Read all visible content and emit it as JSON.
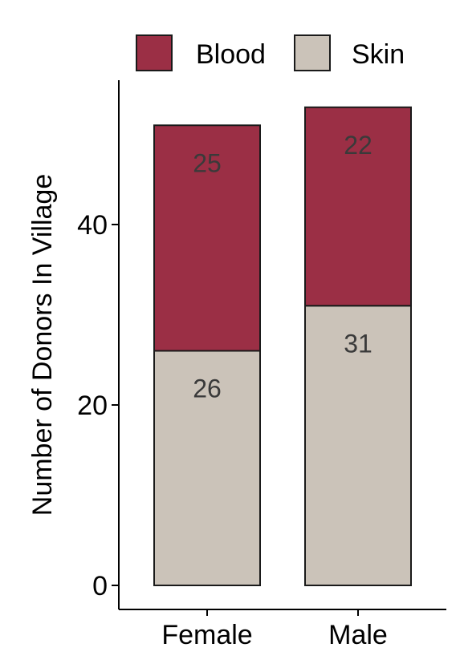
{
  "chart_data": {
    "type": "bar",
    "stacked": true,
    "categories": [
      "Female",
      "Male"
    ],
    "series": [
      {
        "name": "Skin",
        "values": [
          26,
          31
        ],
        "color": "#cbc3b9"
      },
      {
        "name": "Blood",
        "values": [
          25,
          22
        ],
        "color": "#9b2f45"
      }
    ],
    "legend_order": [
      "Blood",
      "Skin"
    ],
    "title": "",
    "xlabel": "",
    "ylabel": "Number of Donors In Village",
    "ylim": [
      0,
      56
    ],
    "yticks": [
      0,
      20,
      40
    ],
    "grid": false,
    "legend_position": "top"
  }
}
